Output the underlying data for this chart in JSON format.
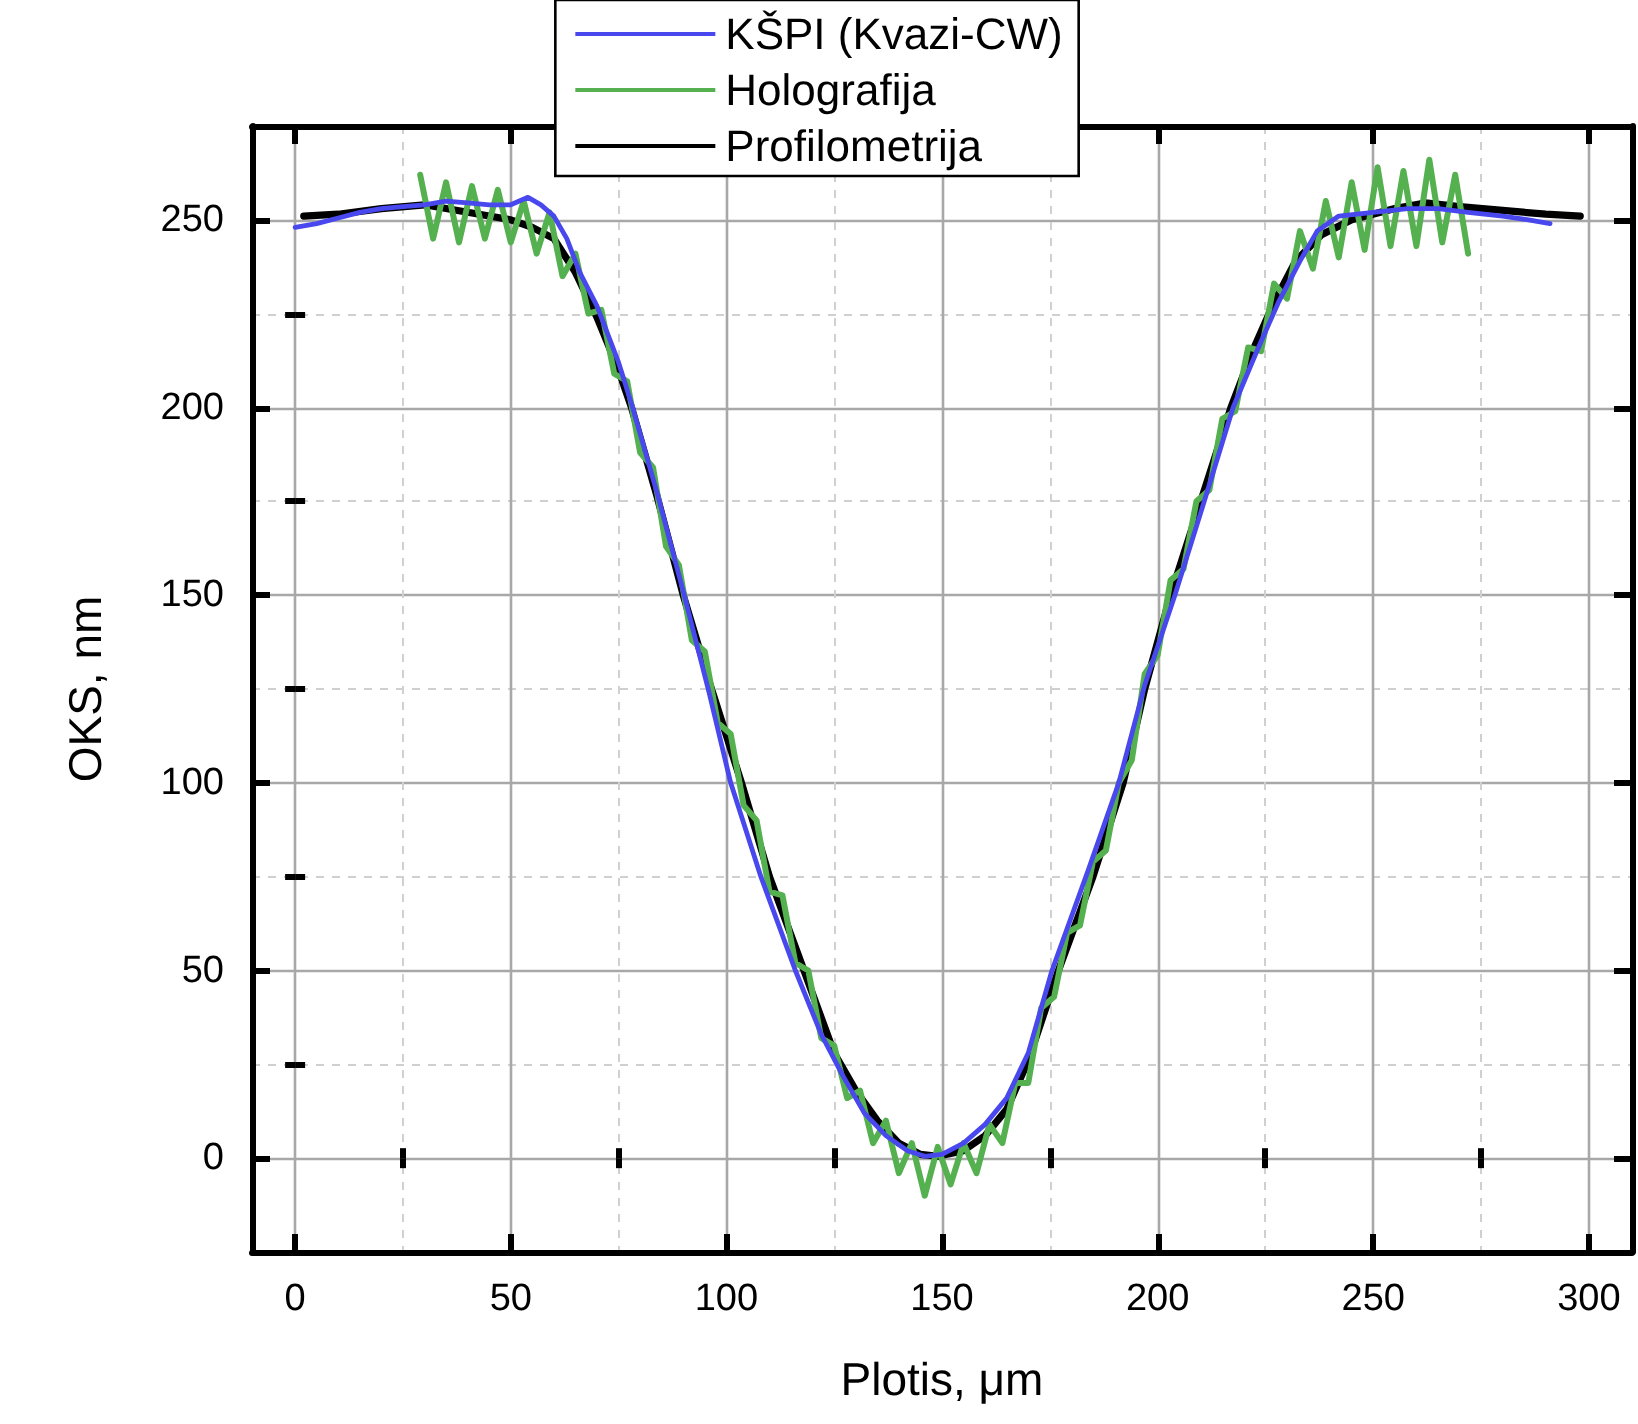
{
  "chart_data": {
    "type": "line",
    "xlabel": "Plotis, μm",
    "ylabel": "OKS, nm",
    "xlim": [
      -10,
      310
    ],
    "ylim": [
      -25,
      275
    ],
    "xticks": [
      0,
      {
        "value": 25,
        "label": null
      },
      50,
      {
        "value": 75,
        "label": null
      },
      100,
      {
        "value": 125,
        "label": null
      },
      150,
      {
        "value": 175,
        "label": null
      },
      200,
      {
        "value": 225,
        "label": null
      },
      250,
      {
        "value": 275,
        "label": null
      },
      300
    ],
    "yticks": [
      {
        "value": -25,
        "label": null
      },
      0,
      {
        "value": 25,
        "label": null
      },
      50,
      {
        "value": 75,
        "label": null
      },
      100,
      {
        "value": 125,
        "label": null
      },
      150,
      {
        "value": 175,
        "label": null
      },
      200,
      {
        "value": 225,
        "label": null
      },
      250
    ],
    "grid": true,
    "legend": "top",
    "marker": "none",
    "line_style": "solid",
    "series": [
      {
        "name": "KŠPI (Kvazi-CW)",
        "color": "#4848ee",
        "x": [
          0,
          5,
          10,
          15,
          20,
          25,
          30,
          35,
          40,
          45,
          50,
          54,
          57,
          60,
          63,
          66,
          70,
          75,
          78,
          84,
          90,
          96,
          101,
          108,
          116,
          122,
          127,
          132,
          137,
          142,
          146,
          150,
          155,
          160,
          165,
          170,
          175.5,
          184,
          191,
          197,
          204,
          210,
          217.5,
          223,
          228,
          233,
          237,
          242,
          250,
          258,
          265,
          272,
          280,
          286,
          291
        ],
        "values": [
          248,
          249,
          250.5,
          252,
          253,
          253.5,
          254,
          255,
          254.5,
          254,
          254,
          256,
          254,
          251,
          245,
          236,
          227,
          212,
          201,
          177,
          151,
          124,
          100,
          75,
          50,
          33,
          22,
          12,
          6,
          2,
          0.5,
          1,
          4,
          9,
          16,
          28,
          50,
          77,
          100,
          126,
          150,
          172,
          200,
          215,
          228,
          239,
          247,
          251,
          252,
          253,
          253,
          252,
          251,
          250,
          249
        ]
      },
      {
        "name": "Holografija",
        "color": "#55b04f",
        "x": [
          29,
          32,
          35,
          38,
          41,
          44,
          47,
          50,
          53,
          56,
          59,
          62,
          65,
          68,
          71,
          74,
          77,
          80,
          83,
          86,
          89,
          92,
          95,
          98,
          101,
          104,
          107,
          110,
          113,
          116,
          119,
          122,
          125,
          128,
          131,
          134,
          137,
          140,
          143,
          146,
          149,
          152,
          155,
          158,
          161,
          164,
          167,
          170,
          173,
          176,
          179,
          182,
          185,
          188,
          191,
          194,
          197,
          200,
          203,
          206,
          209,
          212,
          215,
          218,
          221,
          224,
          227,
          230,
          233,
          236,
          239,
          242,
          245,
          248,
          251,
          254,
          257,
          260,
          263,
          266,
          269,
          272
        ],
        "values": [
          262,
          245,
          260,
          244,
          259,
          245,
          258,
          244,
          255,
          241,
          252,
          235,
          241,
          225,
          226,
          209,
          207,
          188,
          184,
          163,
          158,
          138,
          135,
          116,
          113,
          94,
          90,
          71,
          70,
          52,
          50,
          32,
          30,
          16,
          18,
          4,
          10,
          -4,
          4,
          -10,
          3,
          -7,
          4,
          -4,
          9,
          4,
          20,
          20,
          40,
          43,
          60,
          62,
          79,
          82,
          100,
          106,
          129,
          134,
          154,
          157,
          175,
          178,
          197,
          199,
          216,
          215,
          233,
          229,
          247,
          237,
          255,
          240,
          260,
          242,
          264,
          243,
          263,
          243,
          266,
          244,
          262,
          241
        ]
      },
      {
        "name": "Profilometrija",
        "color": "#000000",
        "x": [
          2,
          10,
          20,
          30,
          40,
          50,
          55,
          60,
          65,
          70,
          75,
          78,
          84,
          90,
          96,
          103.5,
          110,
          118,
          125,
          130,
          135,
          140,
          145,
          149,
          155,
          160,
          165,
          170,
          177,
          185,
          192,
          197,
          203,
          210,
          217,
          222,
          227,
          232,
          238,
          245,
          255,
          262,
          270,
          280,
          290,
          298
        ],
        "values": [
          251,
          251.5,
          253,
          254,
          252,
          250,
          248,
          245,
          236,
          224,
          210,
          200,
          176,
          150,
          127,
          100,
          75,
          50,
          28,
          18,
          10,
          4,
          1,
          0.5,
          2,
          6,
          13,
          26,
          50,
          75,
          100,
          125,
          150,
          175,
          200,
          215,
          228,
          239,
          246,
          250,
          253,
          254.5,
          253.5,
          252.5,
          251.5,
          251
        ]
      }
    ]
  }
}
